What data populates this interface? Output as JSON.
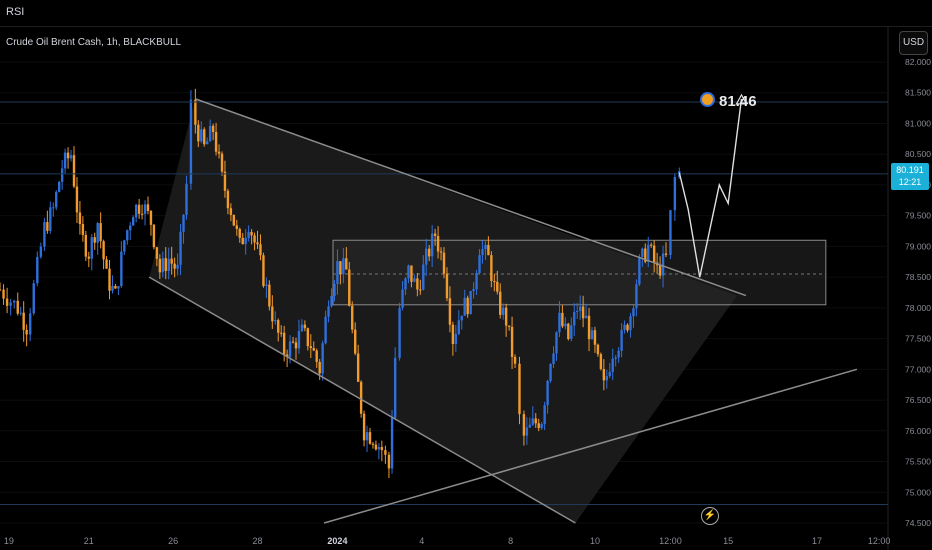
{
  "header": {
    "indicator": "RSI",
    "symbol": "Crude Oil Brent Cash, 1h, BLACKBULL",
    "currency": "USD"
  },
  "price_badge": {
    "price": "80.191",
    "countdown": "12:21"
  },
  "target": {
    "label": "81.46"
  },
  "colors": {
    "up": "#2f6fdb",
    "down": "#f29b2d",
    "band": "#3a3a3a",
    "background": "#000000"
  },
  "icons": [
    "target-icon",
    "lightning-icon"
  ],
  "chart_data": {
    "type": "candlestick",
    "title": "Crude Oil Brent Cash, 1h, BLACKBULL",
    "ylim": [
      74.5,
      82.0
    ],
    "y_ticks": [
      "82.000",
      "81.500",
      "81.000",
      "80.500",
      "80.000",
      "79.500",
      "79.000",
      "78.500",
      "78.000",
      "77.500",
      "77.000",
      "76.500",
      "76.000",
      "75.500",
      "75.000",
      "74.500"
    ],
    "x_ticks": [
      "19",
      "21",
      "26",
      "28",
      "2024",
      "4",
      "8",
      "10",
      "12:00",
      "15",
      "17",
      "12:00"
    ],
    "x_range": [
      0,
      100
    ],
    "grid": true,
    "close_path": [
      [
        0,
        78.3
      ],
      [
        2,
        78.0
      ],
      [
        3,
        77.7
      ],
      [
        5,
        79.3
      ],
      [
        6,
        79.6
      ],
      [
        7,
        80.3
      ],
      [
        8,
        80.5
      ],
      [
        9,
        79.2
      ],
      [
        10,
        78.9
      ],
      [
        11,
        79.4
      ],
      [
        12,
        78.5
      ],
      [
        13,
        78.2
      ],
      [
        14,
        79.1
      ],
      [
        15,
        79.6
      ],
      [
        16,
        79.7
      ],
      [
        17,
        79.4
      ],
      [
        18,
        78.6
      ],
      [
        19,
        78.8
      ],
      [
        20,
        78.6
      ],
      [
        21,
        80.0
      ],
      [
        21.5,
        81.3
      ],
      [
        22,
        81.0
      ],
      [
        23,
        80.6
      ],
      [
        24,
        80.9
      ],
      [
        25,
        80.1
      ],
      [
        26,
        79.6
      ],
      [
        27,
        79.0
      ],
      [
        28,
        79.4
      ],
      [
        29,
        78.9
      ],
      [
        30,
        78.3
      ],
      [
        31,
        77.7
      ],
      [
        32,
        77.3
      ],
      [
        33,
        77.4
      ],
      [
        34,
        77.6
      ],
      [
        35,
        77.4
      ],
      [
        36,
        77.0
      ],
      [
        37,
        78.2
      ],
      [
        38,
        78.7
      ],
      [
        39,
        78.6
      ],
      [
        40,
        77.1
      ],
      [
        41,
        76.0
      ],
      [
        42,
        75.9
      ],
      [
        43,
        75.7
      ],
      [
        43.8,
        75.4
      ],
      [
        44.5,
        77.2
      ],
      [
        45,
        78.0
      ],
      [
        46,
        78.6
      ],
      [
        47,
        78.3
      ],
      [
        48,
        78.8
      ],
      [
        49,
        79.2
      ],
      [
        50,
        78.7
      ],
      [
        51,
        77.5
      ],
      [
        52,
        78.0
      ],
      [
        53,
        78.1
      ],
      [
        54,
        79.0
      ],
      [
        55,
        78.8
      ],
      [
        56,
        78.1
      ],
      [
        57,
        77.8
      ],
      [
        58,
        77.0
      ],
      [
        58.5,
        76.2
      ],
      [
        59,
        75.9
      ],
      [
        60,
        76.1
      ],
      [
        61,
        76.2
      ],
      [
        62,
        77.2
      ],
      [
        63,
        77.8
      ],
      [
        64,
        77.5
      ],
      [
        65,
        78.0
      ],
      [
        66,
        77.8
      ],
      [
        67,
        77.3
      ],
      [
        68,
        76.7
      ],
      [
        69,
        77.3
      ],
      [
        70,
        77.5
      ],
      [
        71,
        77.9
      ],
      [
        72,
        78.7
      ],
      [
        73,
        79.0
      ],
      [
        74,
        78.6
      ],
      [
        75,
        78.8
      ],
      [
        75.5,
        79.5
      ],
      [
        76,
        80.1
      ],
      [
        76.5,
        80.2
      ]
    ],
    "projection": [
      [
        76.5,
        80.2
      ],
      [
        77.5,
        79.6
      ],
      [
        78.8,
        78.5
      ],
      [
        81,
        80.0
      ],
      [
        82,
        79.7
      ],
      [
        83.5,
        81.4
      ]
    ],
    "shapes": {
      "descending_channel": {
        "upper": [
          [
            22,
            81.4
          ],
          [
            84,
            78.2
          ]
        ],
        "lower": [
          [
            16.8,
            78.5
          ],
          [
            64.8,
            74.5
          ]
        ],
        "fill_to": [
          83,
          78.2
        ]
      },
      "resistance_zone": {
        "top": 79.1,
        "bottom": 78.05,
        "x_start": 37.5,
        "x_end": 93,
        "mid_line": 78.55
      },
      "ascending_trendline": [
        [
          36.5,
          74.5
        ],
        [
          96.5,
          77.0
        ]
      ],
      "horizontal_levels": [
        81.35,
        80.18,
        74.8
      ]
    }
  }
}
